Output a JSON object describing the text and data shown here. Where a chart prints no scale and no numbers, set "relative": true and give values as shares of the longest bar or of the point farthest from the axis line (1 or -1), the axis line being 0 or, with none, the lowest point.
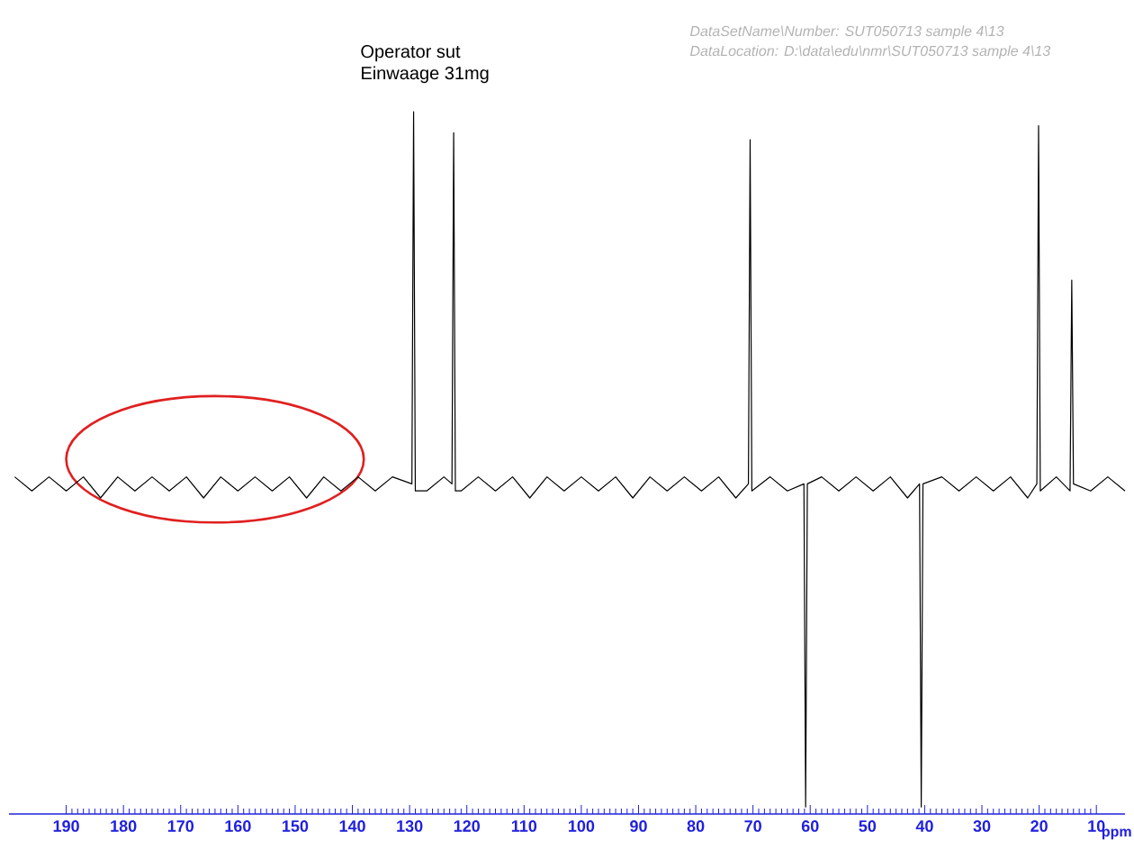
{
  "chart_data": {
    "type": "line",
    "relative": true,
    "xlabel": "ppm",
    "annotations": [
      "Operator sut",
      "Einwaage 31mg",
      "DataSetName\\Number: SUT050713 sample 4\\13",
      "DataLocation: D:\\data\\edu\\nmr\\SUT050713 sample 4\\13"
    ],
    "xlim": [
      200,
      5
    ],
    "xticks": [
      190,
      180,
      170,
      160,
      150,
      140,
      130,
      120,
      110,
      100,
      90,
      80,
      70,
      60,
      50,
      40,
      30,
      20,
      10
    ],
    "series": [
      {
        "color": "#000000",
        "x": [
          199,
          196,
          193,
          190,
          187,
          184,
          181,
          178,
          175,
          172,
          169,
          166,
          163,
          160,
          157,
          154,
          151,
          148,
          145,
          142,
          139,
          136,
          133,
          129.6,
          129.3,
          129.0,
          127,
          124,
          122.6,
          122.3,
          122.0,
          121,
          118,
          115,
          112,
          109,
          106,
          103,
          100,
          97,
          94,
          91,
          88,
          85,
          82,
          79,
          76,
          73,
          70.8,
          70.5,
          70.2,
          67,
          64,
          61.1,
          60.8,
          60.5,
          58,
          55,
          52,
          49,
          46,
          43,
          40.9,
          40.6,
          40.3,
          37,
          34,
          31,
          28,
          25,
          22,
          20.4,
          20.1,
          19.8,
          17,
          14.6,
          14.3,
          14.0,
          11,
          8,
          5
        ],
        "values": [
          0.48,
          0.46,
          0.48,
          0.46,
          0.48,
          0.45,
          0.48,
          0.46,
          0.48,
          0.46,
          0.48,
          0.45,
          0.48,
          0.46,
          0.48,
          0.46,
          0.48,
          0.45,
          0.48,
          0.46,
          0.48,
          0.46,
          0.48,
          0.47,
          1,
          0.46,
          0.46,
          0.48,
          0.47,
          0.97,
          0.46,
          0.46,
          0.48,
          0.46,
          0.48,
          0.45,
          0.48,
          0.46,
          0.48,
          0.46,
          0.48,
          0.45,
          0.48,
          0.46,
          0.48,
          0.46,
          0.48,
          0.45,
          0.47,
          0.96,
          0.46,
          0.48,
          0.46,
          0.47,
          0.01,
          0.47,
          0.48,
          0.46,
          0.48,
          0.46,
          0.48,
          0.45,
          0.47,
          0.01,
          0.47,
          0.48,
          0.46,
          0.48,
          0.46,
          0.48,
          0.45,
          0.47,
          0.98,
          0.46,
          0.48,
          0.46,
          0.76,
          0.47,
          0.46,
          0.48,
          0.46
        ]
      }
    ]
  }
}
